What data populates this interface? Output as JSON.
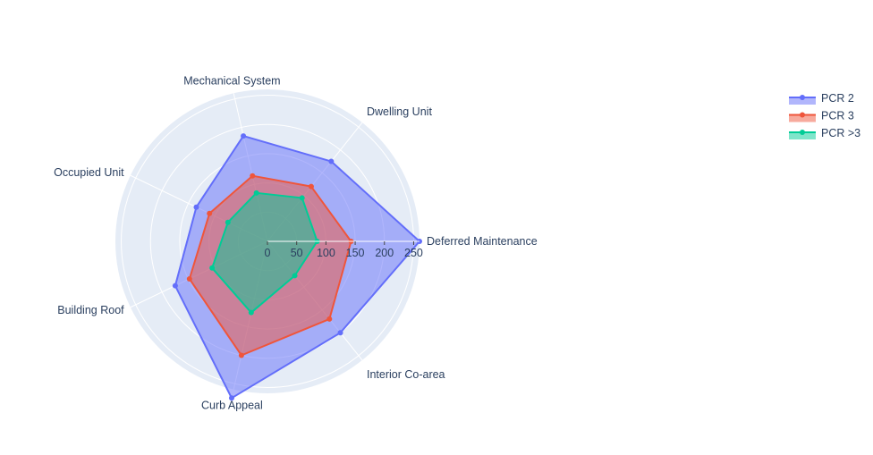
{
  "chart_data": {
    "type": "radar",
    "categories": [
      "Deferred Maintenance",
      "Dwelling Unit",
      "Mechanical System",
      "Occupied Unit",
      "Building Roof",
      "Curb Appeal",
      "Interior Co-area"
    ],
    "radial_ticks": [
      0,
      50,
      100,
      150,
      200,
      250
    ],
    "radial_range": [
      0,
      260
    ],
    "series": [
      {
        "name": "PCR 2",
        "color": "#636efa",
        "values": [
          260,
          175,
          185,
          135,
          175,
          275,
          200
        ]
      },
      {
        "name": "PCR 3",
        "color": "#ef553b",
        "values": [
          143,
          120,
          115,
          110,
          148,
          200,
          170
        ]
      },
      {
        "name": "PCR >3",
        "color": "#00cc96",
        "values": [
          85,
          95,
          85,
          75,
          105,
          125,
          75
        ]
      }
    ],
    "legend_position": "top-right"
  }
}
